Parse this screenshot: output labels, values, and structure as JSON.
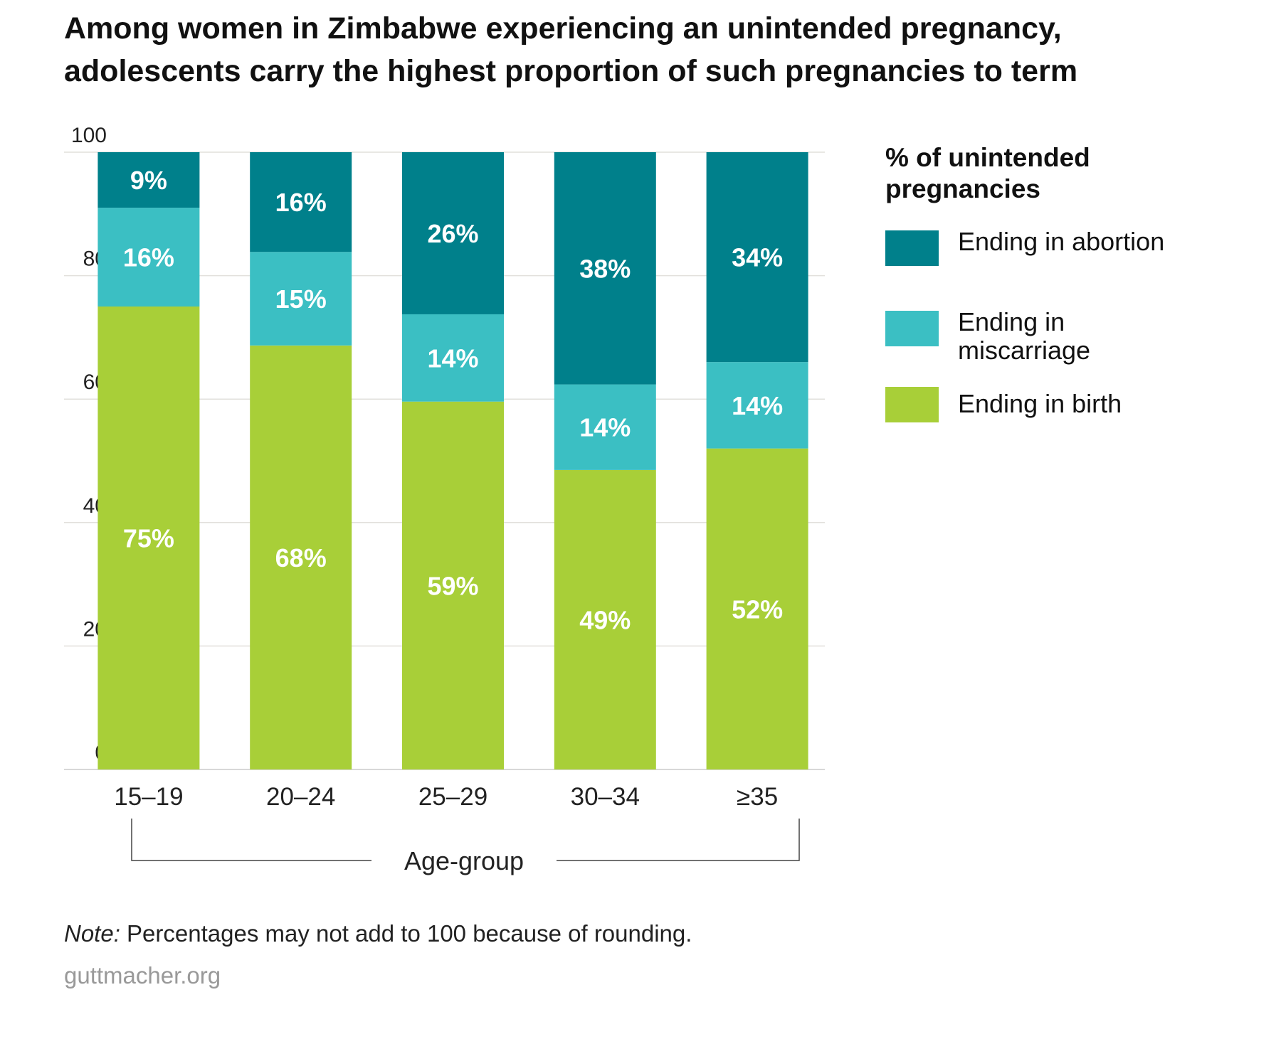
{
  "title_lines": [
    "Among women in Zimbabwe experiencing an unintended pregnancy,",
    "adolescents carry the highest proportion of such pregnancies to term"
  ],
  "colors": {
    "abortion": "#00808b",
    "miscarriage": "#3bbfc3",
    "birth": "#a8cf38"
  },
  "chart_data": {
    "type": "bar",
    "stacked": true,
    "title": "Among women in Zimbabwe experiencing an unintended pregnancy, adolescents carry the highest proportion of such pregnancies to term",
    "xlabel": "Age-group",
    "ylabel": "",
    "ylim": [
      0,
      100
    ],
    "yticks": [
      "0",
      "20",
      "40",
      "60",
      "80",
      "100"
    ],
    "grid": true,
    "legend_position": "right",
    "legend_title": "% of unintended pregnancies",
    "categories": [
      "15–19",
      "20–24",
      "25–29",
      "30–34",
      "≥35"
    ],
    "series": [
      {
        "name": "Ending in birth",
        "key": "birth",
        "values": [
          75,
          68,
          59,
          49,
          52
        ],
        "labels": [
          "75%",
          "68%",
          "59%",
          "49%",
          "52%"
        ]
      },
      {
        "name": "Ending in miscarriage",
        "key": "miscarriage",
        "values": [
          16,
          15,
          14,
          14,
          14
        ],
        "labels": [
          "16%",
          "15%",
          "14%",
          "14%",
          "14%"
        ]
      },
      {
        "name": "Ending in abortion",
        "key": "abortion",
        "values": [
          9,
          16,
          26,
          38,
          34
        ],
        "labels": [
          "9%",
          "16%",
          "26%",
          "38%",
          "34%"
        ]
      }
    ]
  },
  "legend": {
    "title": "% of unintended pregnancies",
    "items": [
      {
        "label": "Ending in abortion",
        "key": "abortion"
      },
      {
        "label": "Ending in miscarriage",
        "key": "miscarriage"
      },
      {
        "label": "Ending in birth",
        "key": "birth"
      }
    ]
  },
  "note_label": "Note:",
  "note_text": " Percentages may not add to 100 because of rounding.",
  "source": "guttmacher.org"
}
